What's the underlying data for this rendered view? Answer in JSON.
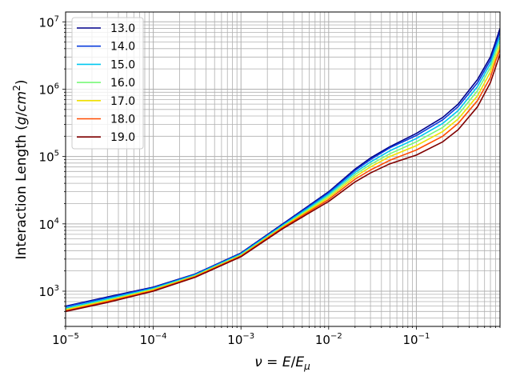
{
  "chart_data": {
    "type": "line",
    "title": "",
    "xlabel": "ν = E/Eμ",
    "ylabel": "Interaction Length (g/cm²)",
    "xscale": "log",
    "yscale": "log",
    "xlim": [
      1e-05,
      0.9
    ],
    "ylim": [
      300,
      14000000
    ],
    "grid": true,
    "grid_minor": true,
    "legend_position": "top-left",
    "xticks": [
      {
        "value": 1e-05,
        "base": "10",
        "exp": "−5"
      },
      {
        "value": 0.0001,
        "base": "10",
        "exp": "−4"
      },
      {
        "value": 0.001,
        "base": "10",
        "exp": "−3"
      },
      {
        "value": 0.01,
        "base": "10",
        "exp": "−2"
      },
      {
        "value": 0.1,
        "base": "10",
        "exp": "−1"
      }
    ],
    "yticks": [
      {
        "value": 1000,
        "base": "10",
        "exp": "3"
      },
      {
        "value": 10000,
        "base": "10",
        "exp": "4"
      },
      {
        "value": 100000,
        "base": "10",
        "exp": "5"
      },
      {
        "value": 1000000,
        "base": "10",
        "exp": "6"
      },
      {
        "value": 10000000,
        "base": "10",
        "exp": "7"
      }
    ],
    "x": [
      1e-05,
      3e-05,
      0.0001,
      0.0003,
      0.001,
      0.003,
      0.01,
      0.02,
      0.03,
      0.05,
      0.1,
      0.2,
      0.3,
      0.5,
      0.7,
      0.8,
      0.9
    ],
    "series": [
      {
        "name": "13.0",
        "color": "#00008b",
        "values": [
          600,
          820,
          1150,
          1800,
          3700,
          10000,
          30000,
          65000,
          95000,
          140000,
          220000,
          380000,
          600000,
          1400000,
          3000000,
          5000000,
          8000000
        ]
      },
      {
        "name": "14.0",
        "color": "#0a3cdc",
        "values": [
          590,
          800,
          1130,
          1780,
          3650,
          9800,
          29000,
          62000,
          90000,
          135000,
          205000,
          350000,
          550000,
          1250000,
          2700000,
          4500000,
          7000000
        ]
      },
      {
        "name": "15.0",
        "color": "#00c8f0",
        "values": [
          560,
          770,
          1100,
          1740,
          3550,
          9500,
          27500,
          58000,
          83000,
          122000,
          185000,
          310000,
          480000,
          1100000,
          2400000,
          4000000,
          6000000
        ]
      },
      {
        "name": "16.0",
        "color": "#78f878",
        "values": [
          540,
          740,
          1070,
          1700,
          3450,
          9200,
          26000,
          54000,
          76000,
          110000,
          165000,
          270000,
          420000,
          950000,
          2100000,
          3500000,
          5200000
        ]
      },
      {
        "name": "17.0",
        "color": "#f0e000",
        "values": [
          530,
          720,
          1050,
          1670,
          3380,
          9000,
          24500,
          50000,
          70000,
          100000,
          145000,
          235000,
          360000,
          800000,
          1800000,
          3000000,
          4500000
        ]
      },
      {
        "name": "18.0",
        "color": "#ff4a00",
        "values": [
          510,
          700,
          1020,
          1640,
          3320,
          8800,
          23000,
          46000,
          63000,
          88000,
          125000,
          200000,
          310000,
          680000,
          1500000,
          2600000,
          3900000
        ]
      },
      {
        "name": "19.0",
        "color": "#800000",
        "values": [
          500,
          680,
          1000,
          1610,
          3250,
          8500,
          21500,
          42000,
          57000,
          78000,
          105000,
          165000,
          250000,
          550000,
          1250000,
          2100000,
          3300000
        ]
      }
    ]
  }
}
